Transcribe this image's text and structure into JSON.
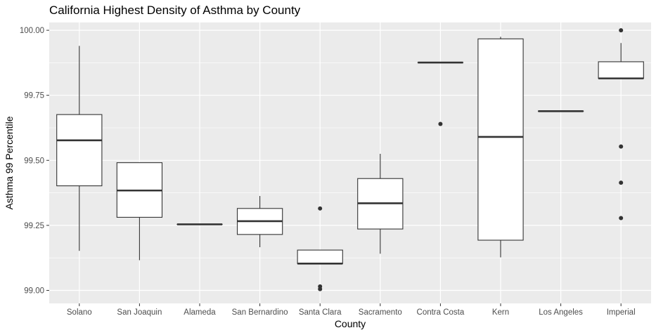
{
  "chart_data": {
    "type": "boxplot",
    "title": "California Highest Density of Asthma by County",
    "xlabel": "County",
    "ylabel": "Asthma 99 Percentile",
    "ylim": [
      98.95,
      100.03
    ],
    "yticks": [
      99.0,
      99.25,
      99.5,
      99.75,
      100.0
    ],
    "ytick_labels": [
      "99.00",
      "99.25",
      "99.50",
      "99.75",
      "100.00"
    ],
    "grid": true,
    "legend": "none",
    "colors": {
      "panel": "#ebebeb",
      "grid_major": "#ffffff",
      "box_fill": "#ffffff",
      "box_line": "#333333",
      "outlier": "#333333"
    },
    "categories": [
      "Solano",
      "San Joaquin",
      "Alameda",
      "San Bernardino",
      "Santa Clara",
      "Sacramento",
      "Contra Costa",
      "Kern",
      "Los Angeles",
      "Imperial"
    ],
    "boxes": [
      {
        "category": "Solano",
        "whisker_low": 99.152,
        "q1": 99.402,
        "median": 99.577,
        "q3": 99.676,
        "whisker_high": 99.94,
        "outliers": []
      },
      {
        "category": "San Joaquin",
        "whisker_low": 99.116,
        "q1": 99.281,
        "median": 99.384,
        "q3": 99.491,
        "whisker_high": 99.491,
        "outliers": []
      },
      {
        "category": "Alameda",
        "whisker_low": 99.254,
        "q1": 99.254,
        "median": 99.254,
        "q3": 99.254,
        "whisker_high": 99.254,
        "outliers": []
      },
      {
        "category": "San Bernardino",
        "whisker_low": 99.166,
        "q1": 99.215,
        "median": 99.266,
        "q3": 99.315,
        "whisker_high": 99.363,
        "outliers": []
      },
      {
        "category": "Santa Clara",
        "whisker_low": 99.103,
        "q1": 99.103,
        "median": 99.103,
        "q3": 99.155,
        "whisker_high": 99.155,
        "outliers": [
          99.315,
          99.015,
          99.005
        ]
      },
      {
        "category": "Sacramento",
        "whisker_low": 99.141,
        "q1": 99.236,
        "median": 99.335,
        "q3": 99.43,
        "whisker_high": 99.525,
        "outliers": []
      },
      {
        "category": "Contra Costa",
        "whisker_low": 99.876,
        "q1": 99.876,
        "median": 99.876,
        "q3": 99.876,
        "whisker_high": 99.876,
        "outliers": [
          99.64
        ]
      },
      {
        "category": "Kern",
        "whisker_low": 99.127,
        "q1": 99.193,
        "median": 99.59,
        "q3": 99.967,
        "whisker_high": 99.975,
        "outliers": []
      },
      {
        "category": "Los Angeles",
        "whisker_low": 99.689,
        "q1": 99.689,
        "median": 99.689,
        "q3": 99.689,
        "whisker_high": 99.689,
        "outliers": []
      },
      {
        "category": "Imperial",
        "whisker_low": 99.815,
        "q1": 99.815,
        "median": 99.815,
        "q3": 99.879,
        "whisker_high": 99.951,
        "outliers": [
          100.0,
          99.553,
          99.414,
          99.278
        ]
      }
    ]
  }
}
